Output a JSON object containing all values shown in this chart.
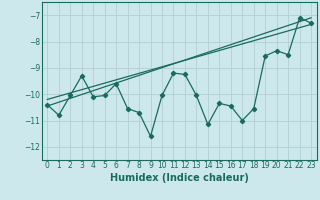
{
  "xlabel": "Humidex (Indice chaleur)",
  "ylabel": "",
  "bg_color": "#cce8ec",
  "grid_color": "#b0ced4",
  "line_color": "#1a6b5e",
  "xlim": [
    -0.5,
    23.5
  ],
  "ylim": [
    -12.5,
    -6.5
  ],
  "yticks": [
    -12,
    -11,
    -10,
    -9,
    -8,
    -7
  ],
  "xticks": [
    0,
    1,
    2,
    3,
    4,
    5,
    6,
    7,
    8,
    9,
    10,
    11,
    12,
    13,
    14,
    15,
    16,
    17,
    18,
    19,
    20,
    21,
    22,
    23
  ],
  "main_x": [
    0,
    1,
    2,
    3,
    4,
    5,
    6,
    7,
    8,
    9,
    10,
    11,
    12,
    13,
    14,
    15,
    16,
    17,
    18,
    19,
    20,
    21,
    22,
    23
  ],
  "main_y": [
    -10.4,
    -10.8,
    -10.05,
    -9.3,
    -10.1,
    -10.05,
    -9.6,
    -10.55,
    -10.7,
    -11.6,
    -10.05,
    -9.2,
    -9.25,
    -10.05,
    -11.15,
    -10.35,
    -10.45,
    -11.0,
    -10.55,
    -8.55,
    -8.35,
    -8.5,
    -7.1,
    -7.3
  ],
  "trend1_x": [
    0,
    23
  ],
  "trend1_y": [
    -10.45,
    -7.1
  ],
  "trend2_x": [
    0,
    23
  ],
  "trend2_y": [
    -10.2,
    -7.35
  ],
  "font_color": "#1a6b5e",
  "xlabel_fontsize": 7,
  "tick_fontsize": 5.5
}
